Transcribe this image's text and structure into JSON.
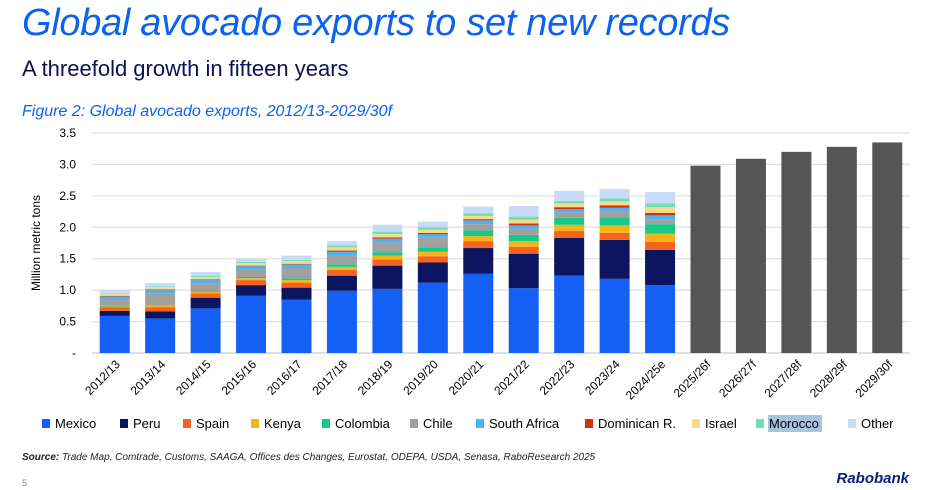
{
  "header": {
    "title": "Global avocado exports to set new records",
    "subtitle": "A threefold growth in fifteen years",
    "figure_title": "Figure 2: Global avocado exports, 2012/13-2029/30f"
  },
  "footer": {
    "source_label": "Source:",
    "source_text": " Trade Map, Comtrade, Customs, SAAGA, Offices des Changes, Eurostat, ODEPA, USDA, Senasa, RaboResearch 2025",
    "page_number": "5",
    "brand": "Rabobank"
  },
  "chart_data": {
    "type": "bar",
    "stacked": true,
    "title": "Figure 2: Global avocado exports, 2012/13-2029/30f",
    "xlabel": "",
    "ylabel": "Million metric tons",
    "ylim": [
      0,
      3.5
    ],
    "yticks": [
      "-",
      "0.5",
      "1.0",
      "1.5",
      "2.0",
      "2.5",
      "3.0",
      "3.5"
    ],
    "grid": true,
    "legend_position": "bottom",
    "categories": [
      "2012/13",
      "2013/14",
      "2014/15",
      "2015/16",
      "2016/17",
      "2017/18",
      "2018/19",
      "2019/20",
      "2020/21",
      "2021/22",
      "2022/23",
      "2023/24",
      "2024/25e",
      "2025/26f",
      "2026/27f",
      "2027/28f",
      "2028/29f",
      "2029/30f"
    ],
    "series": [
      {
        "name": "Mexico",
        "color": "#1560f4",
        "values": [
          0.59,
          0.55,
          0.71,
          0.91,
          0.85,
          0.99,
          1.02,
          1.12,
          1.26,
          1.03,
          1.23,
          1.18,
          1.08,
          null,
          null,
          null,
          null,
          null
        ]
      },
      {
        "name": "Peru",
        "color": "#0b1560",
        "values": [
          0.08,
          0.11,
          0.17,
          0.17,
          0.19,
          0.24,
          0.37,
          0.32,
          0.41,
          0.55,
          0.6,
          0.62,
          0.56,
          null,
          null,
          null,
          null,
          null
        ]
      },
      {
        "name": "Spain",
        "color": "#f5641e",
        "values": [
          0.06,
          0.07,
          0.07,
          0.08,
          0.08,
          0.09,
          0.1,
          0.1,
          0.11,
          0.11,
          0.11,
          0.11,
          0.13,
          null,
          null,
          null,
          null,
          null
        ]
      },
      {
        "name": "Kenya",
        "color": "#f7b418",
        "values": [
          0.01,
          0.02,
          0.02,
          0.03,
          0.04,
          0.05,
          0.06,
          0.07,
          0.08,
          0.09,
          0.1,
          0.12,
          0.13,
          null,
          null,
          null,
          null,
          null
        ]
      },
      {
        "name": "Colombia",
        "color": "#14c98a",
        "values": [
          0.01,
          0.01,
          0.01,
          0.02,
          0.03,
          0.04,
          0.05,
          0.07,
          0.09,
          0.1,
          0.11,
          0.13,
          0.15,
          null,
          null,
          null,
          null,
          null
        ]
      },
      {
        "name": "Chile",
        "color": "#a0a0a0",
        "values": [
          0.1,
          0.19,
          0.12,
          0.12,
          0.17,
          0.15,
          0.16,
          0.16,
          0.1,
          0.1,
          0.09,
          0.1,
          0.08,
          null,
          null,
          null,
          null,
          null
        ]
      },
      {
        "name": "South Africa",
        "color": "#4cb3f3",
        "values": [
          0.05,
          0.05,
          0.06,
          0.05,
          0.05,
          0.05,
          0.06,
          0.05,
          0.06,
          0.05,
          0.05,
          0.05,
          0.06,
          null,
          null,
          null,
          null,
          null
        ]
      },
      {
        "name": "Dominican R.",
        "color": "#d1320f",
        "values": [
          0.01,
          0.01,
          0.01,
          0.01,
          0.01,
          0.02,
          0.02,
          0.02,
          0.02,
          0.03,
          0.03,
          0.04,
          0.04,
          null,
          null,
          null,
          null,
          null
        ]
      },
      {
        "name": "Israel",
        "color": "#f9d98c",
        "values": [
          0.03,
          0.04,
          0.04,
          0.04,
          0.04,
          0.05,
          0.05,
          0.05,
          0.05,
          0.06,
          0.06,
          0.06,
          0.09,
          null,
          null,
          null,
          null,
          null
        ]
      },
      {
        "name": "Morocco",
        "color": "#6fe0b2",
        "values": [
          0.01,
          0.01,
          0.02,
          0.02,
          0.02,
          0.03,
          0.04,
          0.04,
          0.04,
          0.05,
          0.04,
          0.05,
          0.06,
          null,
          null,
          null,
          null,
          null
        ]
      },
      {
        "name": "Other",
        "color": "#c7daf7",
        "values": [
          0.05,
          0.05,
          0.06,
          0.05,
          0.07,
          0.07,
          0.11,
          0.09,
          0.11,
          0.17,
          0.16,
          0.15,
          0.18,
          null,
          null,
          null,
          null,
          null
        ]
      },
      {
        "name": "",
        "color": "#565656",
        "values": [
          null,
          null,
          null,
          null,
          null,
          null,
          null,
          null,
          null,
          null,
          null,
          null,
          null,
          2.98,
          3.09,
          3.2,
          3.28,
          3.35
        ]
      }
    ],
    "legend_highlight": "Morocco"
  }
}
